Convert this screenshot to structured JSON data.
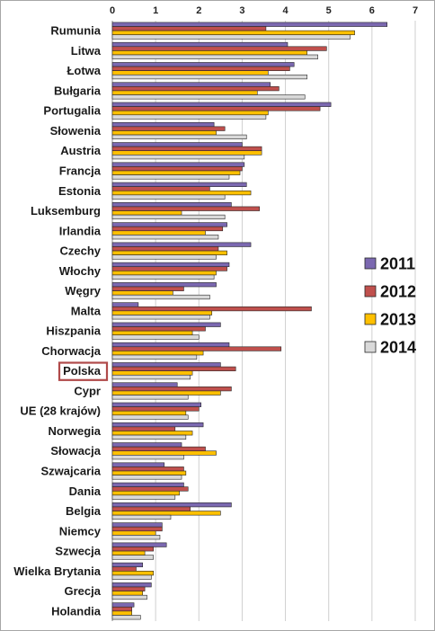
{
  "chart_data": {
    "type": "bar",
    "orientation": "horizontal",
    "xlim": [
      0,
      7
    ],
    "xticks": [
      "0",
      "1",
      "2",
      "3",
      "4",
      "5",
      "6",
      "7"
    ],
    "grid": "vertical",
    "legend_position": "right",
    "highlight_category": "Polska",
    "categories": [
      "Rumunia",
      "Litwa",
      "Łotwa",
      "Bułgaria",
      "Portugalia",
      "Słowenia",
      "Austria",
      "Francja",
      "Estonia",
      "Luksemburg",
      "Irlandia",
      "Czechy",
      "Włochy",
      "Węgry",
      "Malta",
      "Hiszpania",
      "Chorwacja",
      "Polska",
      "Cypr",
      "UE (28 krajów)",
      "Norwegia",
      "Słowacja",
      "Szwajcaria",
      "Dania",
      "Belgia",
      "Niemcy",
      "Szwecja",
      "Wielka Brytania",
      "Grecja",
      "Holandia"
    ],
    "series": [
      {
        "name": "2011",
        "color": "#7b68b0",
        "values": [
          6.35,
          4.05,
          4.2,
          3.65,
          5.05,
          2.35,
          3.0,
          3.05,
          3.1,
          2.75,
          2.65,
          3.2,
          2.7,
          2.4,
          0.6,
          2.5,
          2.7,
          2.5,
          1.5,
          2.05,
          2.1,
          1.6,
          1.2,
          1.65,
          2.75,
          1.15,
          1.25,
          0.7,
          0.9,
          0.5
        ]
      },
      {
        "name": "2012",
        "color": "#c0504d",
        "values": [
          3.55,
          4.95,
          4.1,
          3.85,
          4.8,
          2.6,
          3.45,
          3.0,
          2.25,
          3.4,
          2.55,
          2.45,
          2.65,
          1.65,
          4.6,
          2.15,
          3.9,
          2.85,
          2.75,
          2.0,
          1.45,
          2.15,
          1.65,
          1.75,
          1.8,
          1.15,
          0.95,
          0.55,
          0.75,
          0.45
        ]
      },
      {
        "name": "2013",
        "color": "#ffc000",
        "values": [
          5.6,
          4.5,
          3.6,
          3.35,
          3.6,
          2.4,
          3.45,
          2.95,
          3.2,
          1.6,
          2.15,
          2.65,
          2.4,
          1.4,
          2.3,
          1.85,
          2.1,
          1.85,
          2.5,
          1.7,
          1.85,
          2.4,
          1.7,
          1.55,
          2.5,
          1.0,
          0.75,
          0.95,
          0.7,
          0.45
        ]
      },
      {
        "name": "2014",
        "color": "#d9d9d9",
        "values": [
          5.5,
          4.75,
          4.5,
          4.45,
          3.55,
          3.1,
          3.05,
          2.7,
          2.6,
          2.6,
          2.45,
          2.4,
          2.35,
          2.25,
          2.25,
          2.0,
          1.95,
          1.8,
          1.75,
          1.75,
          1.7,
          1.65,
          1.6,
          1.45,
          1.35,
          1.1,
          0.95,
          0.9,
          0.8,
          0.65
        ]
      }
    ]
  }
}
